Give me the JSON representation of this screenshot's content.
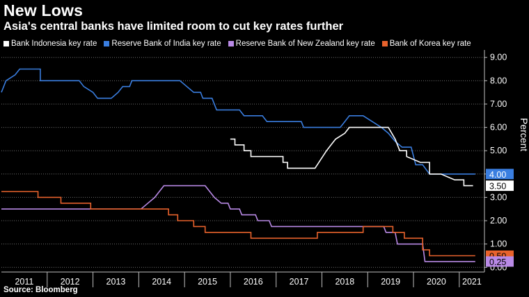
{
  "title": "New Lows",
  "subtitle": "Asia's central banks have limited room to cut key rates further",
  "source": "Source: Bloomberg",
  "chart_data": {
    "type": "line",
    "ylabel": "Percent",
    "ylim": [
      -0.2,
      9.2
    ],
    "xlim": [
      2011.0,
      2021.55
    ],
    "y_ticks": [
      0,
      1,
      2,
      3,
      4,
      5,
      6,
      7,
      8,
      9
    ],
    "y_tick_labels": [
      "0.00",
      "1.00",
      "2.00",
      "3.00",
      "4.00",
      "5.00",
      "6.00",
      "7.00",
      "8.00",
      "9.00"
    ],
    "x_tick_labels": [
      "2011",
      "2012",
      "2013",
      "2014",
      "2015",
      "2016",
      "2017",
      "2018",
      "2019",
      "2020",
      "2021"
    ],
    "series": [
      {
        "name": "Bank Indonesia key rate",
        "color": "#ffffff",
        "end_label": "3.50",
        "points": [
          [
            2016.0,
            5.5
          ],
          [
            2016.1,
            5.5
          ],
          [
            2016.1,
            5.25
          ],
          [
            2016.3,
            5.25
          ],
          [
            2016.3,
            5.0
          ],
          [
            2016.45,
            5.0
          ],
          [
            2016.45,
            4.75
          ],
          [
            2017.15,
            4.75
          ],
          [
            2017.15,
            4.5
          ],
          [
            2017.25,
            4.5
          ],
          [
            2017.25,
            4.25
          ],
          [
            2017.85,
            4.25
          ],
          [
            2018.1,
            5.0
          ],
          [
            2018.2,
            5.25
          ],
          [
            2018.3,
            5.5
          ],
          [
            2018.5,
            5.75
          ],
          [
            2018.6,
            6.0
          ],
          [
            2019.45,
            6.0
          ],
          [
            2019.6,
            5.5
          ],
          [
            2019.7,
            5.0
          ],
          [
            2019.85,
            5.0
          ],
          [
            2019.85,
            4.75
          ],
          [
            2020.15,
            4.5
          ],
          [
            2020.35,
            4.5
          ],
          [
            2020.35,
            4.0
          ],
          [
            2020.6,
            4.0
          ],
          [
            2020.9,
            3.75
          ],
          [
            2021.1,
            3.75
          ],
          [
            2021.1,
            3.5
          ],
          [
            2021.3,
            3.5
          ]
        ]
      },
      {
        "name": "Reserve Bank of India key rate",
        "color": "#3a7ee0",
        "end_label": "4.00",
        "points": [
          [
            2011.0,
            7.5
          ],
          [
            2011.1,
            8.0
          ],
          [
            2011.3,
            8.25
          ],
          [
            2011.4,
            8.5
          ],
          [
            2011.85,
            8.5
          ],
          [
            2011.85,
            8.0
          ],
          [
            2012.7,
            8.0
          ],
          [
            2012.8,
            7.75
          ],
          [
            2013.0,
            7.5
          ],
          [
            2013.1,
            7.25
          ],
          [
            2013.4,
            7.25
          ],
          [
            2013.55,
            7.5
          ],
          [
            2013.65,
            7.75
          ],
          [
            2013.8,
            7.75
          ],
          [
            2013.85,
            8.0
          ],
          [
            2014.9,
            8.0
          ],
          [
            2015.05,
            7.75
          ],
          [
            2015.2,
            7.5
          ],
          [
            2015.35,
            7.5
          ],
          [
            2015.4,
            7.25
          ],
          [
            2015.6,
            7.25
          ],
          [
            2015.7,
            6.75
          ],
          [
            2016.2,
            6.75
          ],
          [
            2016.3,
            6.5
          ],
          [
            2016.7,
            6.5
          ],
          [
            2016.8,
            6.25
          ],
          [
            2017.55,
            6.25
          ],
          [
            2017.6,
            6.0
          ],
          [
            2018.4,
            6.0
          ],
          [
            2018.5,
            6.25
          ],
          [
            2018.6,
            6.5
          ],
          [
            2018.9,
            6.5
          ],
          [
            2019.1,
            6.25
          ],
          [
            2019.3,
            6.0
          ],
          [
            2019.45,
            5.75
          ],
          [
            2019.6,
            5.4
          ],
          [
            2019.75,
            5.15
          ],
          [
            2019.95,
            5.15
          ],
          [
            2020.05,
            4.4
          ],
          [
            2020.2,
            4.4
          ],
          [
            2020.35,
            4.0
          ],
          [
            2021.35,
            4.0
          ]
        ]
      },
      {
        "name": "Reserve Bank of New Zealand key rate",
        "color": "#b98ae6",
        "end_label": "0.25",
        "points": [
          [
            2011.0,
            2.5
          ],
          [
            2014.05,
            2.5
          ],
          [
            2014.2,
            2.75
          ],
          [
            2014.35,
            3.0
          ],
          [
            2014.45,
            3.25
          ],
          [
            2014.55,
            3.5
          ],
          [
            2015.45,
            3.5
          ],
          [
            2015.55,
            3.25
          ],
          [
            2015.65,
            3.0
          ],
          [
            2015.8,
            2.75
          ],
          [
            2015.95,
            2.75
          ],
          [
            2016.0,
            2.5
          ],
          [
            2016.2,
            2.5
          ],
          [
            2016.25,
            2.25
          ],
          [
            2016.55,
            2.25
          ],
          [
            2016.6,
            2.0
          ],
          [
            2016.85,
            2.0
          ],
          [
            2016.9,
            1.75
          ],
          [
            2019.35,
            1.75
          ],
          [
            2019.4,
            1.5
          ],
          [
            2019.6,
            1.5
          ],
          [
            2019.65,
            1.0
          ],
          [
            2020.2,
            1.0
          ],
          [
            2020.25,
            0.25
          ],
          [
            2021.35,
            0.25
          ]
        ]
      },
      {
        "name": "Bank of Korea key rate",
        "color": "#e8622c",
        "end_label": "0.50",
        "points": [
          [
            2011.0,
            3.25
          ],
          [
            2011.8,
            3.25
          ],
          [
            2011.8,
            3.0
          ],
          [
            2012.3,
            3.0
          ],
          [
            2012.3,
            2.75
          ],
          [
            2012.95,
            2.75
          ],
          [
            2012.95,
            2.5
          ],
          [
            2014.65,
            2.5
          ],
          [
            2014.65,
            2.25
          ],
          [
            2014.85,
            2.25
          ],
          [
            2014.85,
            2.0
          ],
          [
            2015.2,
            2.0
          ],
          [
            2015.2,
            1.75
          ],
          [
            2015.45,
            1.75
          ],
          [
            2015.45,
            1.5
          ],
          [
            2016.45,
            1.5
          ],
          [
            2016.45,
            1.25
          ],
          [
            2017.9,
            1.25
          ],
          [
            2017.9,
            1.5
          ],
          [
            2018.9,
            1.5
          ],
          [
            2018.9,
            1.75
          ],
          [
            2019.55,
            1.75
          ],
          [
            2019.55,
            1.5
          ],
          [
            2019.8,
            1.5
          ],
          [
            2019.8,
            1.25
          ],
          [
            2020.2,
            1.25
          ],
          [
            2020.2,
            0.75
          ],
          [
            2020.35,
            0.75
          ],
          [
            2020.35,
            0.5
          ],
          [
            2021.35,
            0.5
          ]
        ]
      }
    ]
  }
}
